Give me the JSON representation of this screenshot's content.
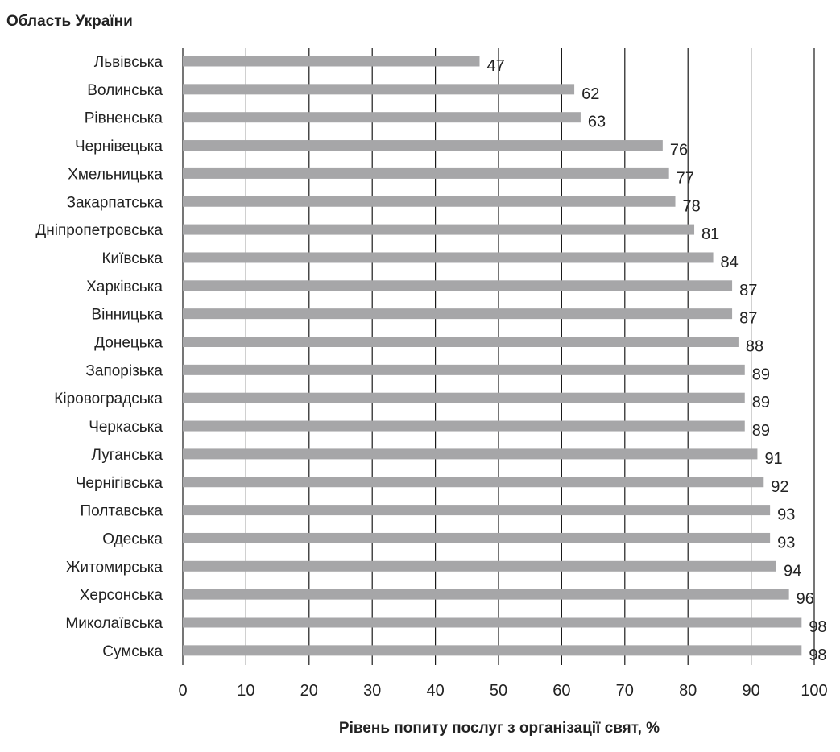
{
  "chart_data": {
    "type": "bar",
    "orientation": "horizontal",
    "ylabel": "Область України",
    "xlabel": "Рівень попиту послуг з організації свят, %",
    "xlim": [
      0,
      100
    ],
    "x_ticks": [
      "0",
      "10",
      "20",
      "30",
      "40",
      "50",
      "60",
      "70",
      "80",
      "90",
      "100"
    ],
    "grid": "vertical",
    "categories": [
      "Львівська",
      "Волинська",
      "Рівненська",
      "Чернівецька",
      "Хмельницька",
      "Закарпатська",
      "Дніпропетровська",
      "Київська",
      "Харківська",
      "Вінницька",
      "Донецька",
      "Запорізька",
      "Кіровоградська",
      "Черкаська",
      "Луганська",
      "Чернігівська",
      "Полтавська",
      "Одеська",
      "Житомирська",
      "Херсонська",
      "Миколаївська",
      "Сумська"
    ],
    "values": [
      47,
      62,
      63,
      76,
      77,
      78,
      81,
      84,
      87,
      87,
      88,
      89,
      89,
      89,
      91,
      92,
      93,
      93,
      94,
      96,
      98,
      98
    ],
    "data_labels": [
      "47",
      "62",
      "63",
      "76",
      "77",
      "78",
      "81",
      "84",
      "87",
      "87",
      "88",
      "89",
      "89",
      "89",
      "91",
      "92",
      "93",
      "93",
      "94",
      "96",
      "98",
      "98"
    ],
    "bar_color": "#a6a6a8",
    "grid_color": "#1a1a1a"
  }
}
